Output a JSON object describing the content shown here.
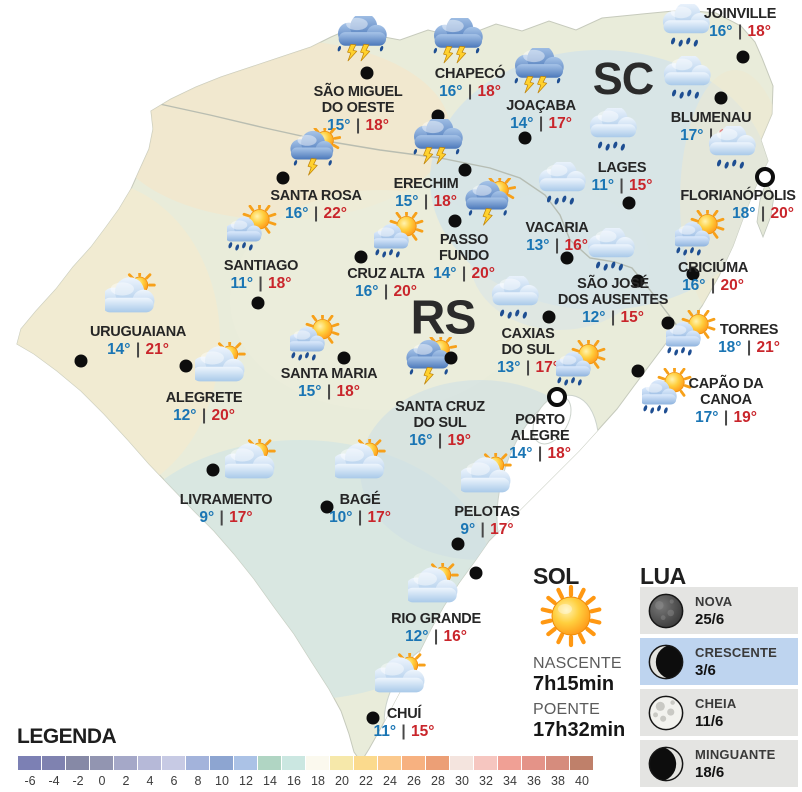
{
  "map": {
    "region_labels": {
      "rs": "RS",
      "sc": "SC"
    }
  },
  "cities": [
    {
      "name": "JOINVILLE",
      "temp_min": "16°",
      "temp_max": "18°",
      "icon": "rain-cloud",
      "marker": "dot"
    },
    {
      "name": "SÃO MIGUEL\nDO OESTE",
      "temp_min": "15°",
      "temp_max": "18°",
      "icon": "storm-cloud",
      "marker": "dot"
    },
    {
      "name": "CHAPECÓ",
      "temp_min": "16°",
      "temp_max": "18°",
      "icon": "storm-cloud",
      "marker": "dot"
    },
    {
      "name": "JOAÇABA",
      "temp_min": "14°",
      "temp_max": "17°",
      "icon": "storm-cloud",
      "marker": "dot"
    },
    {
      "name": "BLUMENAU",
      "temp_min": "17°",
      "temp_max": "19°",
      "icon": "rain-cloud",
      "marker": "dot"
    },
    {
      "name": "LAGES",
      "temp_min": "11°",
      "temp_max": "15°",
      "icon": "rain-cloud",
      "marker": "dot"
    },
    {
      "name": "FLORIANÓPOLIS",
      "temp_min": "18°",
      "temp_max": "20°",
      "icon": "rain-cloud",
      "marker": "ring"
    },
    {
      "name": "SANTA ROSA",
      "temp_min": "16°",
      "temp_max": "22°",
      "icon": "sun-storm",
      "marker": "dot"
    },
    {
      "name": "ERECHIM",
      "temp_min": "15°",
      "temp_max": "18°",
      "icon": "storm-cloud",
      "marker": "dot"
    },
    {
      "name": "VACARIA",
      "temp_min": "13°",
      "temp_max": "16°",
      "icon": "rain-cloud",
      "marker": "dot"
    },
    {
      "name": "SANTIAGO",
      "temp_min": "11°",
      "temp_max": "18°",
      "icon": "sun-rain",
      "marker": "dot"
    },
    {
      "name": "CRUZ ALTA",
      "temp_min": "16°",
      "temp_max": "20°",
      "icon": "sun-rain",
      "marker": "dot"
    },
    {
      "name": "PASSO\nFUNDO",
      "temp_min": "14°",
      "temp_max": "20°",
      "icon": "sun-storm",
      "marker": "dot"
    },
    {
      "name": "SÃO JOSÉ\nDOS AUSENTES",
      "temp_min": "12°",
      "temp_max": "15°",
      "icon": "rain-cloud",
      "marker": "dot"
    },
    {
      "name": "CRICIÚMA",
      "temp_min": "16°",
      "temp_max": "20°",
      "icon": "sun-rain",
      "marker": "dot"
    },
    {
      "name": "URUGUAIANA",
      "temp_min": "14°",
      "temp_max": "21°",
      "icon": "cloud-sun",
      "marker": "dot"
    },
    {
      "name": "CAXIAS\nDO SUL",
      "temp_min": "13°",
      "temp_max": "17°",
      "icon": "rain-cloud",
      "marker": "dot"
    },
    {
      "name": "TORRES",
      "temp_min": "18°",
      "temp_max": "21°",
      "icon": "sun-rain",
      "marker": "dot"
    },
    {
      "name": "SANTA MARIA",
      "temp_min": "15°",
      "temp_max": "18°",
      "icon": "sun-rain",
      "marker": "dot"
    },
    {
      "name": "CAPÃO DA\nCANOA",
      "temp_min": "17°",
      "temp_max": "19°",
      "icon": "sun-rain",
      "marker": "dot"
    },
    {
      "name": "ALEGRETE",
      "temp_min": "12°",
      "temp_max": "20°",
      "icon": "cloud-sun",
      "marker": "dot"
    },
    {
      "name": "SANTA CRUZ\nDO SUL",
      "temp_min": "16°",
      "temp_max": "19°",
      "icon": "sun-storm",
      "marker": "dot"
    },
    {
      "name": "PORTO\nALEGRE",
      "temp_min": "14°",
      "temp_max": "18°",
      "icon": "sun-rain",
      "marker": "ring"
    },
    {
      "name": "LIVRAMENTO",
      "temp_min": "9°",
      "temp_max": "17°",
      "icon": "cloud-sun",
      "marker": "dot"
    },
    {
      "name": "BAGÉ",
      "temp_min": "10°",
      "temp_max": "17°",
      "icon": "cloud-sun",
      "marker": "dot"
    },
    {
      "name": "PELOTAS",
      "temp_min": "9°",
      "temp_max": "17°",
      "icon": "cloud-sun",
      "marker": "dot"
    },
    {
      "name": "RIO GRANDE",
      "temp_min": "12°",
      "temp_max": "16°",
      "icon": "cloud-sun",
      "marker": "dot"
    },
    {
      "name": "CHUÍ",
      "temp_min": "11°",
      "temp_max": "15°",
      "icon": "cloud-sun",
      "marker": "dot"
    }
  ],
  "sun": {
    "title": "SOL",
    "icon": "sun",
    "sunrise_label": "NASCENTE",
    "sunrise_time": "7h15min",
    "sunset_label": "POENTE",
    "sunset_time": "17h32min"
  },
  "moon": {
    "title": "LUA",
    "phases": [
      {
        "name": "NOVA",
        "date": "25/6",
        "icon": "moon-new",
        "highlighted": false
      },
      {
        "name": "CRESCENTE",
        "date": "3/6",
        "icon": "moon-waxing-crescent",
        "highlighted": true
      },
      {
        "name": "CHEIA",
        "date": "11/6",
        "icon": "moon-full",
        "highlighted": false
      },
      {
        "name": "MINGUANTE",
        "date": "18/6",
        "icon": "moon-waning-crescent",
        "highlighted": false
      }
    ]
  },
  "legend": {
    "title": "LEGENDA",
    "scale": [
      {
        "label": "-6",
        "color": "#7c80b4"
      },
      {
        "label": "-4",
        "color": "#7f82b0"
      },
      {
        "label": "-2",
        "color": "#8689a6"
      },
      {
        "label": "0",
        "color": "#9295b1"
      },
      {
        "label": "2",
        "color": "#a5a8c8"
      },
      {
        "label": "4",
        "color": "#b6b9d8"
      },
      {
        "label": "6",
        "color": "#c7cae4"
      },
      {
        "label": "8",
        "color": "#a3b3db"
      },
      {
        "label": "10",
        "color": "#8da5d1"
      },
      {
        "label": "12",
        "color": "#abc2e6"
      },
      {
        "label": "14",
        "color": "#b0d5c3"
      },
      {
        "label": "16",
        "color": "#cbe7e1"
      },
      {
        "label": "18",
        "color": "#fbf9ee"
      },
      {
        "label": "20",
        "color": "#f6e8aa"
      },
      {
        "label": "22",
        "color": "#fbda8d"
      },
      {
        "label": "24",
        "color": "#fbc98d"
      },
      {
        "label": "26",
        "color": "#f7b180"
      },
      {
        "label": "28",
        "color": "#ec9f76"
      },
      {
        "label": "30",
        "color": "#f4e4de"
      },
      {
        "label": "32",
        "color": "#f6c6c0"
      },
      {
        "label": "34",
        "color": "#f0a095"
      },
      {
        "label": "36",
        "color": "#e49388"
      },
      {
        "label": "38",
        "color": "#d68c7d"
      },
      {
        "label": "40",
        "color": "#bf806a"
      }
    ]
  },
  "colors": {
    "temp_min_blue": "#1a75b4",
    "temp_max_red": "#c9252b",
    "moon_highlight": "#bed4ef"
  }
}
